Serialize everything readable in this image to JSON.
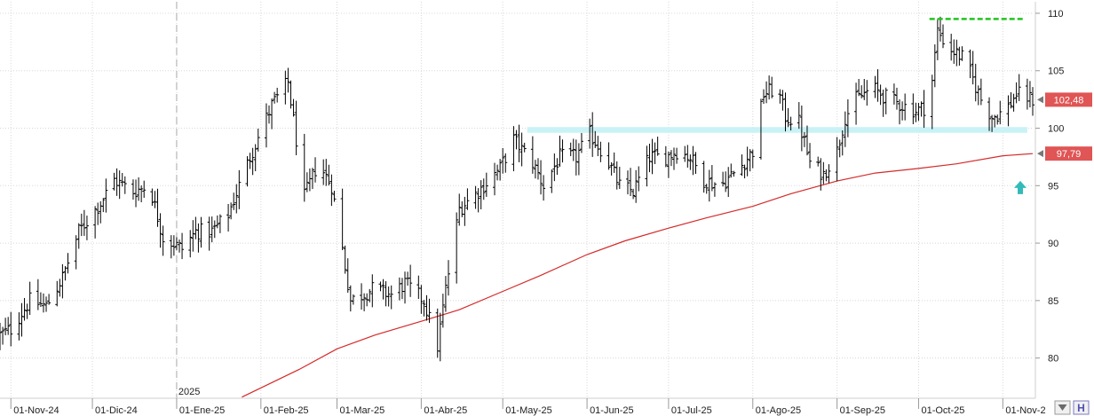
{
  "colors": {
    "price_bars": "#000000",
    "moving_average": "#d42a2a",
    "resistance_line": "#22c322",
    "support_zone": "#c9f2f6",
    "last_price_badge": "#e05555",
    "ma_badge": "#e05555",
    "up_arrow": "#33bbbb",
    "grid": "#d8d8d8",
    "year_marker": "#aaaaaa"
  },
  "toolbar": {
    "button_1_icon": "down-arrow-icon",
    "button_2_label": "H"
  },
  "chart_data": {
    "type": "bar",
    "subtype": "ohlc",
    "title": "",
    "xlabel": "",
    "ylabel": "",
    "ylim": [
      76.5,
      111
    ],
    "y_ticks": [
      80,
      85,
      90,
      95,
      100,
      105,
      110
    ],
    "x_range": [
      "2024-10-28",
      "2025-11-12"
    ],
    "x_tick_labels": [
      {
        "date": "2024-11-01",
        "label": "01-Nov-24"
      },
      {
        "date": "2024-12-01",
        "label": "01-Dic-24"
      },
      {
        "date": "2025-01-01",
        "label": "01-Ene-25"
      },
      {
        "date": "2025-02-01",
        "label": "01-Feb-25"
      },
      {
        "date": "2025-03-01",
        "label": "01-Mar-25"
      },
      {
        "date": "2025-04-01",
        "label": "01-Abr-25"
      },
      {
        "date": "2025-05-01",
        "label": "01-May-25"
      },
      {
        "date": "2025-06-01",
        "label": "01-Jun-25"
      },
      {
        "date": "2025-07-01",
        "label": "01-Jul-25"
      },
      {
        "date": "2025-08-01",
        "label": "01-Ago-25"
      },
      {
        "date": "2025-09-01",
        "label": "01-Sep-25"
      },
      {
        "date": "2025-10-01",
        "label": "01-Oct-25"
      },
      {
        "date": "2025-11-01",
        "label": "01-Nov-2"
      }
    ],
    "year_marker": {
      "date": "2025-01-01",
      "label": "2025"
    },
    "grid": true,
    "price_anchors": [
      [
        "2024-10-28",
        82.0
      ],
      [
        "2024-11-01",
        82.5
      ],
      [
        "2024-11-08",
        85.0
      ],
      [
        "2024-11-14",
        84.5
      ],
      [
        "2024-11-20",
        87.0
      ],
      [
        "2024-11-26",
        91.0
      ],
      [
        "2024-12-04",
        93.5
      ],
      [
        "2024-12-09",
        95.5
      ],
      [
        "2024-12-16",
        94.5
      ],
      [
        "2024-12-22",
        95.0
      ],
      [
        "2024-12-27",
        90.5
      ],
      [
        "2025-01-03",
        89.5
      ],
      [
        "2025-01-08",
        91.0
      ],
      [
        "2025-01-14",
        91.0
      ],
      [
        "2025-01-20",
        92.5
      ],
      [
        "2025-01-28",
        97.5
      ],
      [
        "2025-02-05",
        102.0
      ],
      [
        "2025-02-11",
        104.0
      ],
      [
        "2025-02-14",
        99.0
      ],
      [
        "2025-02-17",
        94.0
      ],
      [
        "2025-02-22",
        97.0
      ],
      [
        "2025-02-27",
        95.0
      ],
      [
        "2025-03-03",
        89.5
      ],
      [
        "2025-03-06",
        85.0
      ],
      [
        "2025-03-14",
        86.0
      ],
      [
        "2025-03-21",
        85.5
      ],
      [
        "2025-03-26",
        86.5
      ],
      [
        "2025-04-02",
        85.0
      ],
      [
        "2025-04-07",
        81.0
      ],
      [
        "2025-04-10",
        86.0
      ],
      [
        "2025-04-15",
        93.0
      ],
      [
        "2025-04-22",
        94.5
      ],
      [
        "2025-04-30",
        96.5
      ],
      [
        "2025-05-05",
        99.0
      ],
      [
        "2025-05-12",
        97.0
      ],
      [
        "2025-05-16",
        95.0
      ],
      [
        "2025-05-22",
        97.5
      ],
      [
        "2025-05-28",
        97.5
      ],
      [
        "2025-06-02",
        99.5
      ],
      [
        "2025-06-08",
        97.5
      ],
      [
        "2025-06-13",
        95.0
      ],
      [
        "2025-06-18",
        94.5
      ],
      [
        "2025-06-24",
        97.5
      ],
      [
        "2025-06-30",
        97.5
      ],
      [
        "2025-07-04",
        98.0
      ],
      [
        "2025-07-09",
        97.5
      ],
      [
        "2025-07-14",
        95.5
      ],
      [
        "2025-07-20",
        95.0
      ],
      [
        "2025-07-27",
        96.5
      ],
      [
        "2025-08-01",
        98.0
      ],
      [
        "2025-08-05",
        103.0
      ],
      [
        "2025-08-10",
        103.5
      ],
      [
        "2025-08-13",
        101.0
      ],
      [
        "2025-08-18",
        100.5
      ],
      [
        "2025-08-22",
        97.0
      ],
      [
        "2025-08-27",
        96.0
      ],
      [
        "2025-09-01",
        98.0
      ],
      [
        "2025-09-04",
        101.0
      ],
      [
        "2025-09-08",
        102.5
      ],
      [
        "2025-09-14",
        103.5
      ],
      [
        "2025-09-20",
        102.5
      ],
      [
        "2025-09-25",
        102.0
      ],
      [
        "2025-09-30",
        101.5
      ],
      [
        "2025-10-05",
        102.0
      ],
      [
        "2025-10-08",
        108.5
      ],
      [
        "2025-10-12",
        107.0
      ],
      [
        "2025-10-18",
        106.0
      ],
      [
        "2025-10-24",
        102.5
      ],
      [
        "2025-10-28",
        101.0
      ],
      [
        "2025-11-02",
        101.5
      ],
      [
        "2025-11-06",
        103.0
      ],
      [
        "2025-11-12",
        102.48
      ]
    ],
    "moving_average": {
      "points": [
        [
          "2025-01-25",
          76.6
        ],
        [
          "2025-02-15",
          79.0
        ],
        [
          "2025-03-01",
          80.8
        ],
        [
          "2025-03-15",
          82.0
        ],
        [
          "2025-04-01",
          83.2
        ],
        [
          "2025-04-15",
          84.2
        ],
        [
          "2025-05-01",
          85.8
        ],
        [
          "2025-05-15",
          87.2
        ],
        [
          "2025-06-01",
          89.0
        ],
        [
          "2025-06-15",
          90.2
        ],
        [
          "2025-07-01",
          91.3
        ],
        [
          "2025-07-15",
          92.2
        ],
        [
          "2025-08-01",
          93.2
        ],
        [
          "2025-08-15",
          94.3
        ],
        [
          "2025-09-01",
          95.4
        ],
        [
          "2025-09-15",
          96.1
        ],
        [
          "2025-10-01",
          96.5
        ],
        [
          "2025-10-15",
          96.9
        ],
        [
          "2025-11-01",
          97.6
        ],
        [
          "2025-11-12",
          97.79
        ]
      ]
    },
    "resistance_line": {
      "from": "2025-10-05",
      "to": "2025-11-09",
      "value": 109.5
    },
    "support_zone": {
      "from": "2025-05-10",
      "to": "2025-11-10",
      "low": 99.6,
      "high": 100.1
    },
    "last_price_label": "102,48",
    "last_price_value": 102.48,
    "ma_label": "97,79",
    "ma_value": 97.79,
    "up_arrow_value": 94.8
  }
}
